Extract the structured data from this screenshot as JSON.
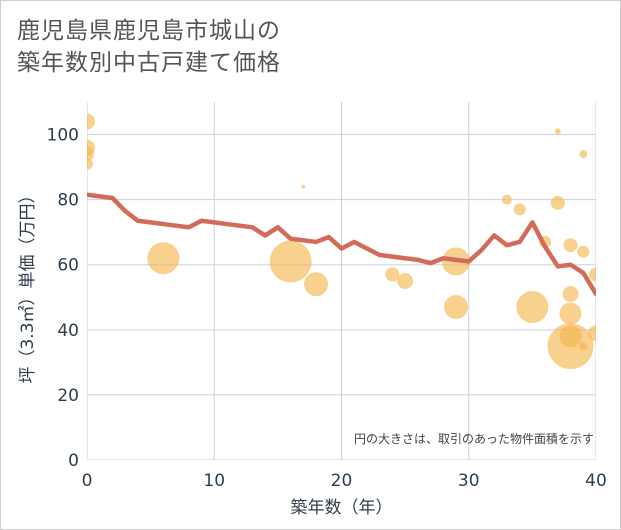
{
  "title_lines": [
    "鹿児島県鹿児島市城山の",
    "築年数別中古戸建て価格"
  ],
  "note": "円の大きさは、取引のあった物件面積を示す",
  "colors": {
    "line": "#d36b5b",
    "bubble": "#f4b54b",
    "grid": "#c8d3dd",
    "plot_bg": "#ffffff"
  },
  "chart_data": {
    "type": "scatter",
    "title": "鹿児島県鹿児島市城山の築年数別中古戸建て価格",
    "xlabel": "築年数（年）",
    "ylabel": "坪（3.3㎡）単価（万円）",
    "xlim": [
      0,
      40
    ],
    "ylim": [
      0,
      110
    ],
    "x_ticks": [
      0,
      10,
      20,
      30,
      40
    ],
    "y_ticks": [
      0,
      20,
      40,
      60,
      80,
      100
    ],
    "grid": true,
    "trend_line": {
      "x": [
        0,
        1,
        2,
        3,
        4,
        5,
        6,
        7,
        8,
        9,
        10,
        11,
        12,
        13,
        14,
        15,
        16,
        17,
        18,
        19,
        20,
        21,
        22,
        23,
        24,
        25,
        26,
        27,
        28,
        29,
        30,
        31,
        32,
        33,
        34,
        35,
        36,
        37,
        38,
        39,
        40
      ],
      "y": [
        81.5,
        81,
        80.5,
        76.5,
        73.5,
        73,
        72.5,
        72,
        71.5,
        73.5,
        73,
        72.5,
        72,
        71.5,
        69,
        71.5,
        68,
        67.5,
        67,
        68.5,
        65,
        67,
        65,
        63,
        62.5,
        62,
        61.5,
        60.5,
        62,
        61.5,
        61,
        64.5,
        69,
        66,
        67,
        73,
        65.5,
        59.5,
        60,
        57.5,
        51
      ]
    },
    "bubbles": [
      {
        "x": 0,
        "y": 104,
        "size": 8
      },
      {
        "x": 0,
        "y": 96,
        "size": 8
      },
      {
        "x": 0,
        "y": 94,
        "size": 7
      },
      {
        "x": 0,
        "y": 91,
        "size": 6
      },
      {
        "x": 6,
        "y": 62,
        "size": 16
      },
      {
        "x": 16,
        "y": 61,
        "size": 21
      },
      {
        "x": 17,
        "y": 84,
        "size": 2
      },
      {
        "x": 18,
        "y": 54,
        "size": 12
      },
      {
        "x": 24,
        "y": 57,
        "size": 7
      },
      {
        "x": 25,
        "y": 55,
        "size": 8
      },
      {
        "x": 29,
        "y": 61,
        "size": 14
      },
      {
        "x": 29,
        "y": 47,
        "size": 12
      },
      {
        "x": 33,
        "y": 80,
        "size": 5
      },
      {
        "x": 34,
        "y": 77,
        "size": 6
      },
      {
        "x": 35,
        "y": 47,
        "size": 16
      },
      {
        "x": 36,
        "y": 67,
        "size": 6
      },
      {
        "x": 37,
        "y": 101,
        "size": 3
      },
      {
        "x": 37,
        "y": 79,
        "size": 7
      },
      {
        "x": 38,
        "y": 66,
        "size": 7
      },
      {
        "x": 38,
        "y": 51,
        "size": 8
      },
      {
        "x": 38,
        "y": 45,
        "size": 11
      },
      {
        "x": 38,
        "y": 38,
        "size": 11
      },
      {
        "x": 38,
        "y": 35,
        "size": 23
      },
      {
        "x": 39,
        "y": 94,
        "size": 4
      },
      {
        "x": 39,
        "y": 64,
        "size": 6
      },
      {
        "x": 39,
        "y": 35,
        "size": 4
      },
      {
        "x": 40,
        "y": 57,
        "size": 7
      },
      {
        "x": 40,
        "y": 39,
        "size": 8
      }
    ]
  }
}
